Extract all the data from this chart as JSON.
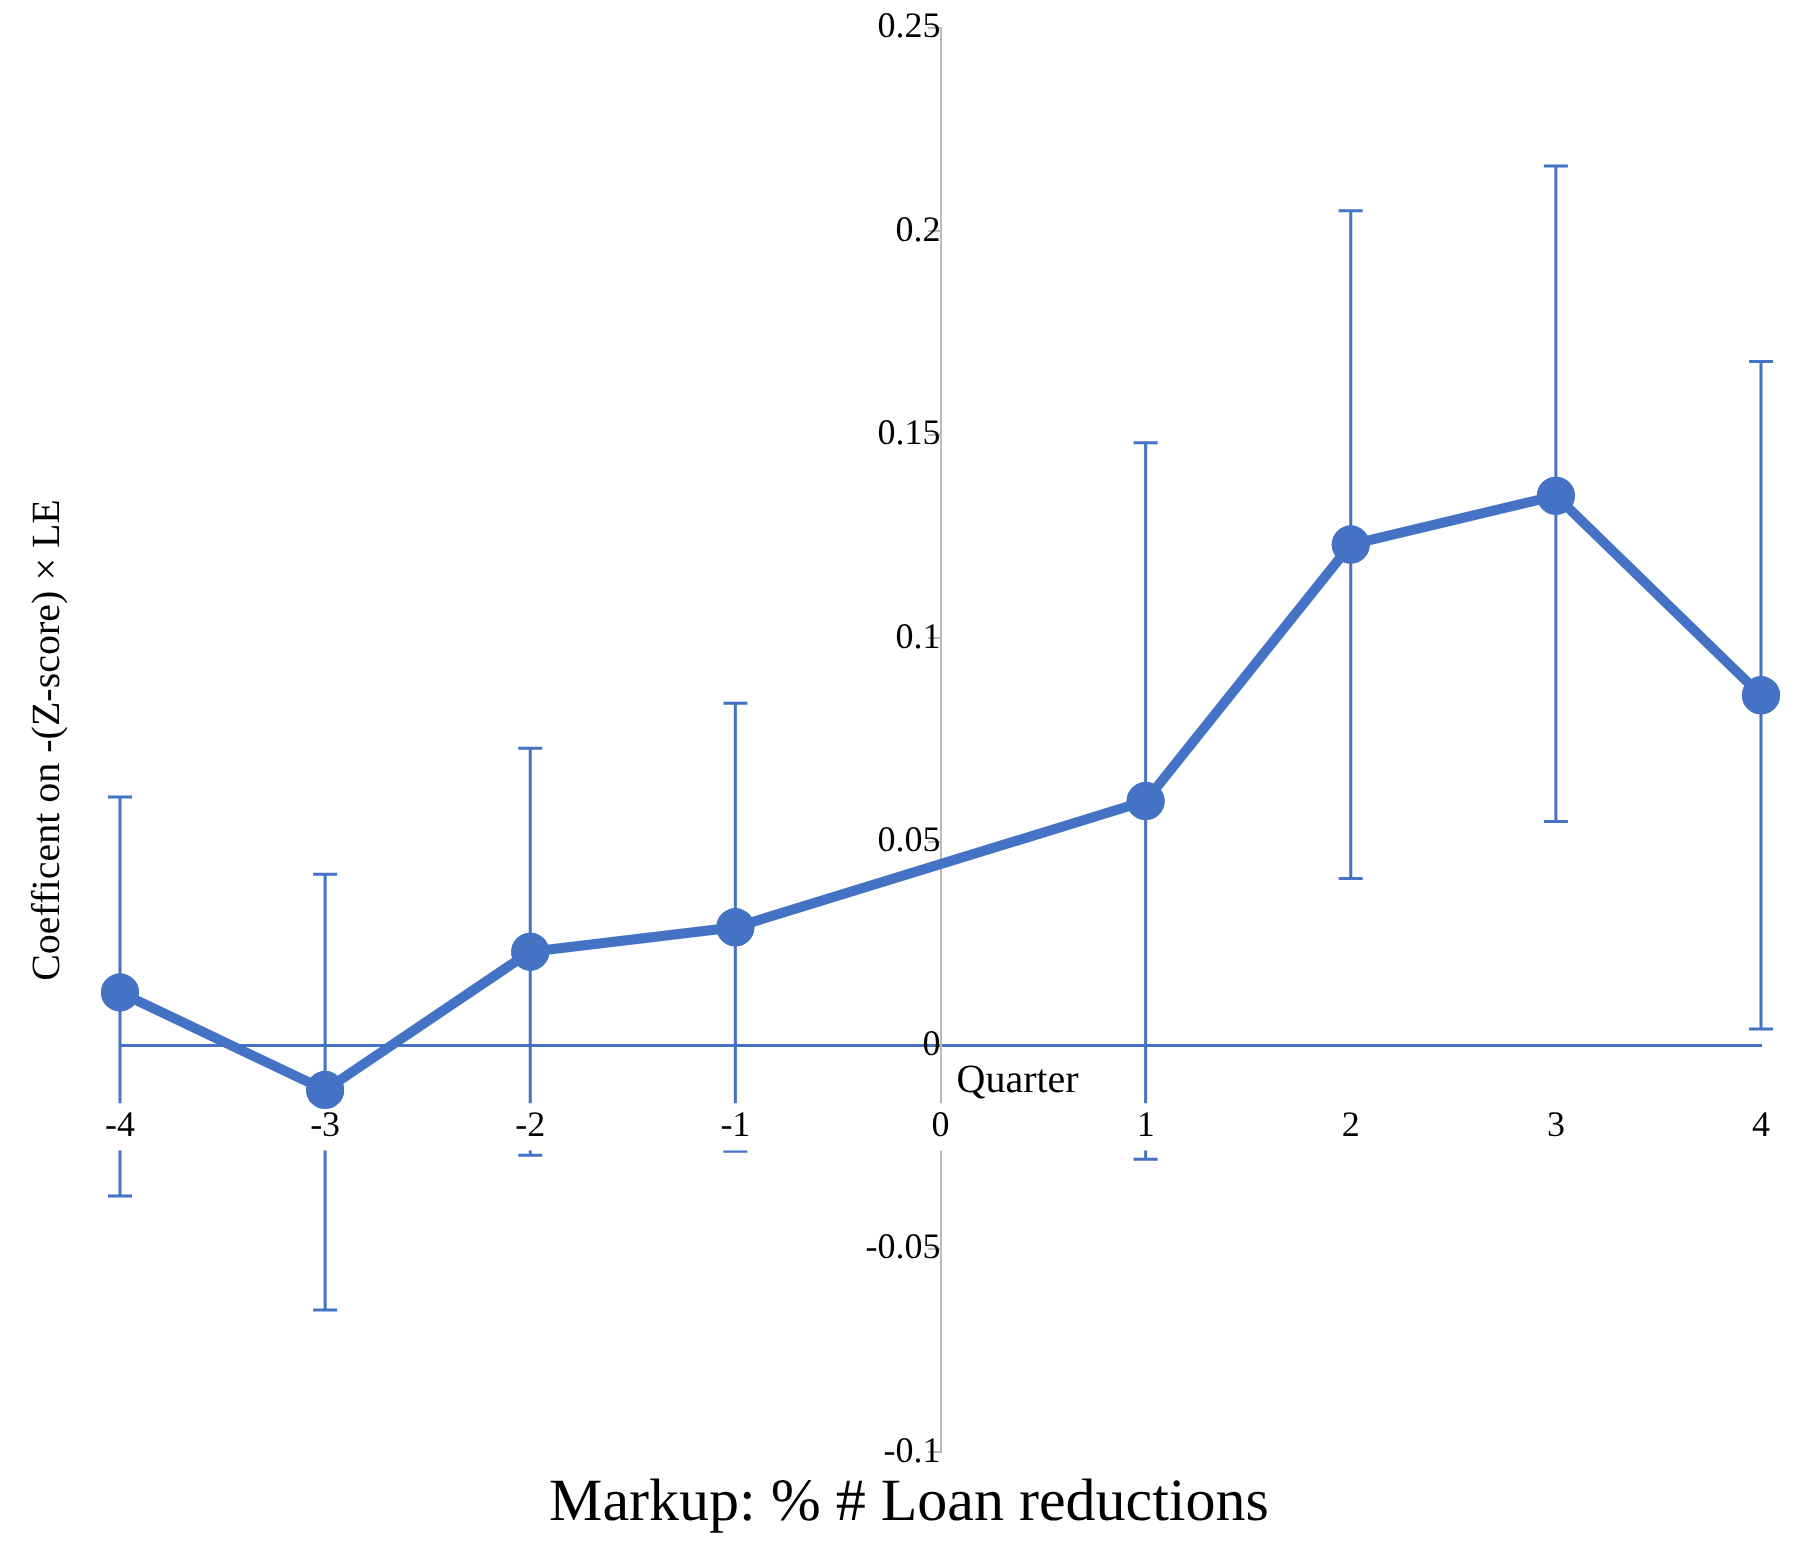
{
  "chart_data": {
    "type": "line",
    "title": "Markup: % # Loan reductions",
    "xlabel": "Quarter",
    "ylabel": "Coefficent on -(Z-score) × LE",
    "x": [
      -4,
      -3,
      -2,
      -1,
      1,
      2,
      3,
      4
    ],
    "series": [
      {
        "color": "#4472c4",
        "values": [
          0.013,
          -0.011,
          0.023,
          0.029,
          0.06,
          0.123,
          0.135,
          0.086
        ],
        "errors": [
          [
            -0.037,
            0.061
          ],
          [
            -0.065,
            0.042
          ],
          [
            -0.027,
            0.073
          ],
          [
            -0.026,
            0.084
          ],
          [
            -0.028,
            0.148
          ],
          [
            0.041,
            0.205
          ],
          [
            0.055,
            0.216
          ],
          [
            0.004,
            0.168
          ]
        ]
      }
    ],
    "xlim": [
      -4,
      4
    ],
    "xticks": [
      -4,
      -3,
      -2,
      -1,
      0,
      1,
      2,
      3,
      4
    ],
    "ylim": [
      -0.1,
      0.25
    ],
    "yticks": [
      -0.1,
      -0.05,
      0,
      0.05,
      0.1,
      0.15,
      0.2,
      0.25
    ],
    "grid": false,
    "legend": false,
    "marker": "circle"
  }
}
